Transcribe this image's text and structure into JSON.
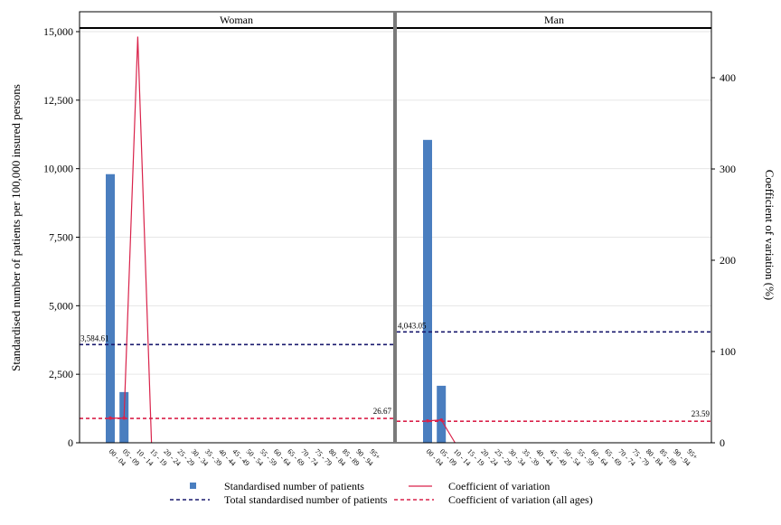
{
  "chart_data": {
    "type": "bar",
    "left_axis_label": "Standardised number of patients per 100,000 insured persons",
    "right_axis_label": "Coefficient of variation (%)",
    "left_ylim": [
      0,
      15000
    ],
    "left_ticks": [
      "0",
      "2,500",
      "5,000",
      "7,500",
      "10,000",
      "12,500",
      "15,000"
    ],
    "left_tick_values": [
      0,
      2500,
      5000,
      7500,
      10000,
      12500,
      15000
    ],
    "right_ylim": [
      0,
      450
    ],
    "right_ticks": [
      "0",
      "100",
      "200",
      "300",
      "400"
    ],
    "right_tick_values": [
      0,
      100,
      200,
      300,
      400
    ],
    "categories": [
      "00 - 04",
      "05 - 09",
      "10 - 14",
      "15 - 19",
      "20 - 24",
      "25 - 29",
      "30 - 34",
      "35 - 39",
      "40 - 44",
      "45 - 49",
      "50 - 54",
      "55 - 59",
      "60 - 64",
      "65 - 69",
      "70 - 74",
      "75 - 79",
      "80 - 84",
      "85 - 89",
      "90 - 94",
      "95+"
    ],
    "panels": [
      {
        "title": "Woman",
        "patients": [
          9800,
          1850,
          0,
          0,
          0,
          0,
          0,
          0,
          0,
          0,
          0,
          0,
          0,
          0,
          0,
          0,
          0,
          0,
          0,
          0
        ],
        "cv": [
          27,
          27,
          445,
          0,
          null,
          null,
          null,
          null,
          null,
          null,
          null,
          null,
          null,
          null,
          null,
          null,
          null,
          null,
          null,
          null
        ],
        "total_patients": 3584.61,
        "total_patients_label": "3,584.61",
        "cv_all_ages": 26.67,
        "cv_all_ages_label": "26.67"
      },
      {
        "title": "Man",
        "patients": [
          11050,
          2080,
          0,
          0,
          0,
          0,
          0,
          0,
          0,
          0,
          0,
          0,
          0,
          0,
          0,
          0,
          0,
          0,
          0,
          0
        ],
        "cv": [
          24,
          25,
          0,
          null,
          null,
          null,
          null,
          null,
          null,
          null,
          null,
          null,
          null,
          null,
          null,
          null,
          null,
          null,
          null,
          null
        ],
        "total_patients": 4043.05,
        "total_patients_label": "4,043.05",
        "cv_all_ages": 23.59,
        "cv_all_ages_label": "23.59"
      }
    ],
    "legend": [
      {
        "label": "Standardised number of patients",
        "kind": "bar",
        "color": "#4a7ebf"
      },
      {
        "label": "Coefficient of variation",
        "kind": "line",
        "color": "#d9224a"
      },
      {
        "label": "Total standardised number of patients",
        "kind": "dash",
        "color": "#1a1a6e"
      },
      {
        "label": "Coefficient of variation (all ages)",
        "kind": "dash",
        "color": "#d9224a"
      }
    ],
    "colors": {
      "bar": "#4a7ebf",
      "cv_line": "#d9224a",
      "total_line": "#1a1a6e",
      "total_label": "#1a1a6e",
      "cv_label": "#8b1030",
      "grid": "#e6e6e6"
    }
  }
}
